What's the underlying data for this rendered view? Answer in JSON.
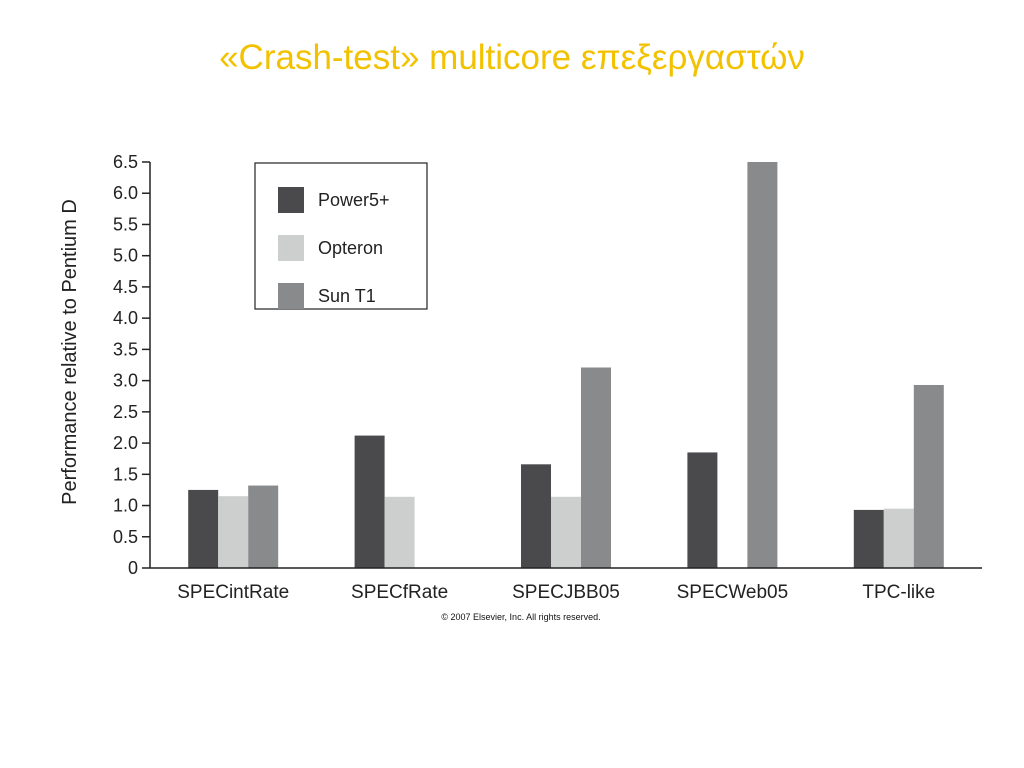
{
  "slide": {
    "title": "«Crash-test» multicore επεξεργαστών"
  },
  "chart_data": {
    "type": "bar",
    "title": "",
    "xlabel": "",
    "ylabel": "Performance relative to Pentium D",
    "ylim": [
      0,
      6.5
    ],
    "yticks": [
      "0",
      "0.5",
      "1.0",
      "1.5",
      "2.0",
      "2.5",
      "3.0",
      "3.5",
      "4.0",
      "4.5",
      "5.0",
      "5.5",
      "6.0",
      "6.5"
    ],
    "grid": false,
    "legend_position": "top-left",
    "categories": [
      "SPECintRate",
      "SPECfRate",
      "SPECJBB05",
      "SPECWeb05",
      "TPC-like"
    ],
    "series": [
      {
        "name": "Power5+",
        "color": "#4a4a4c",
        "values": [
          1.25,
          2.12,
          1.66,
          1.85,
          0.93
        ]
      },
      {
        "name": "Opteron",
        "color": "#cdcfcf",
        "values": [
          1.15,
          1.14,
          1.14,
          null,
          0.95
        ]
      },
      {
        "name": "Sun T1",
        "color": "#888a8c",
        "values": [
          1.32,
          null,
          3.21,
          6.5,
          2.93
        ]
      }
    ],
    "footnote": "© 2007 Elsevier, Inc. All rights reserved."
  }
}
